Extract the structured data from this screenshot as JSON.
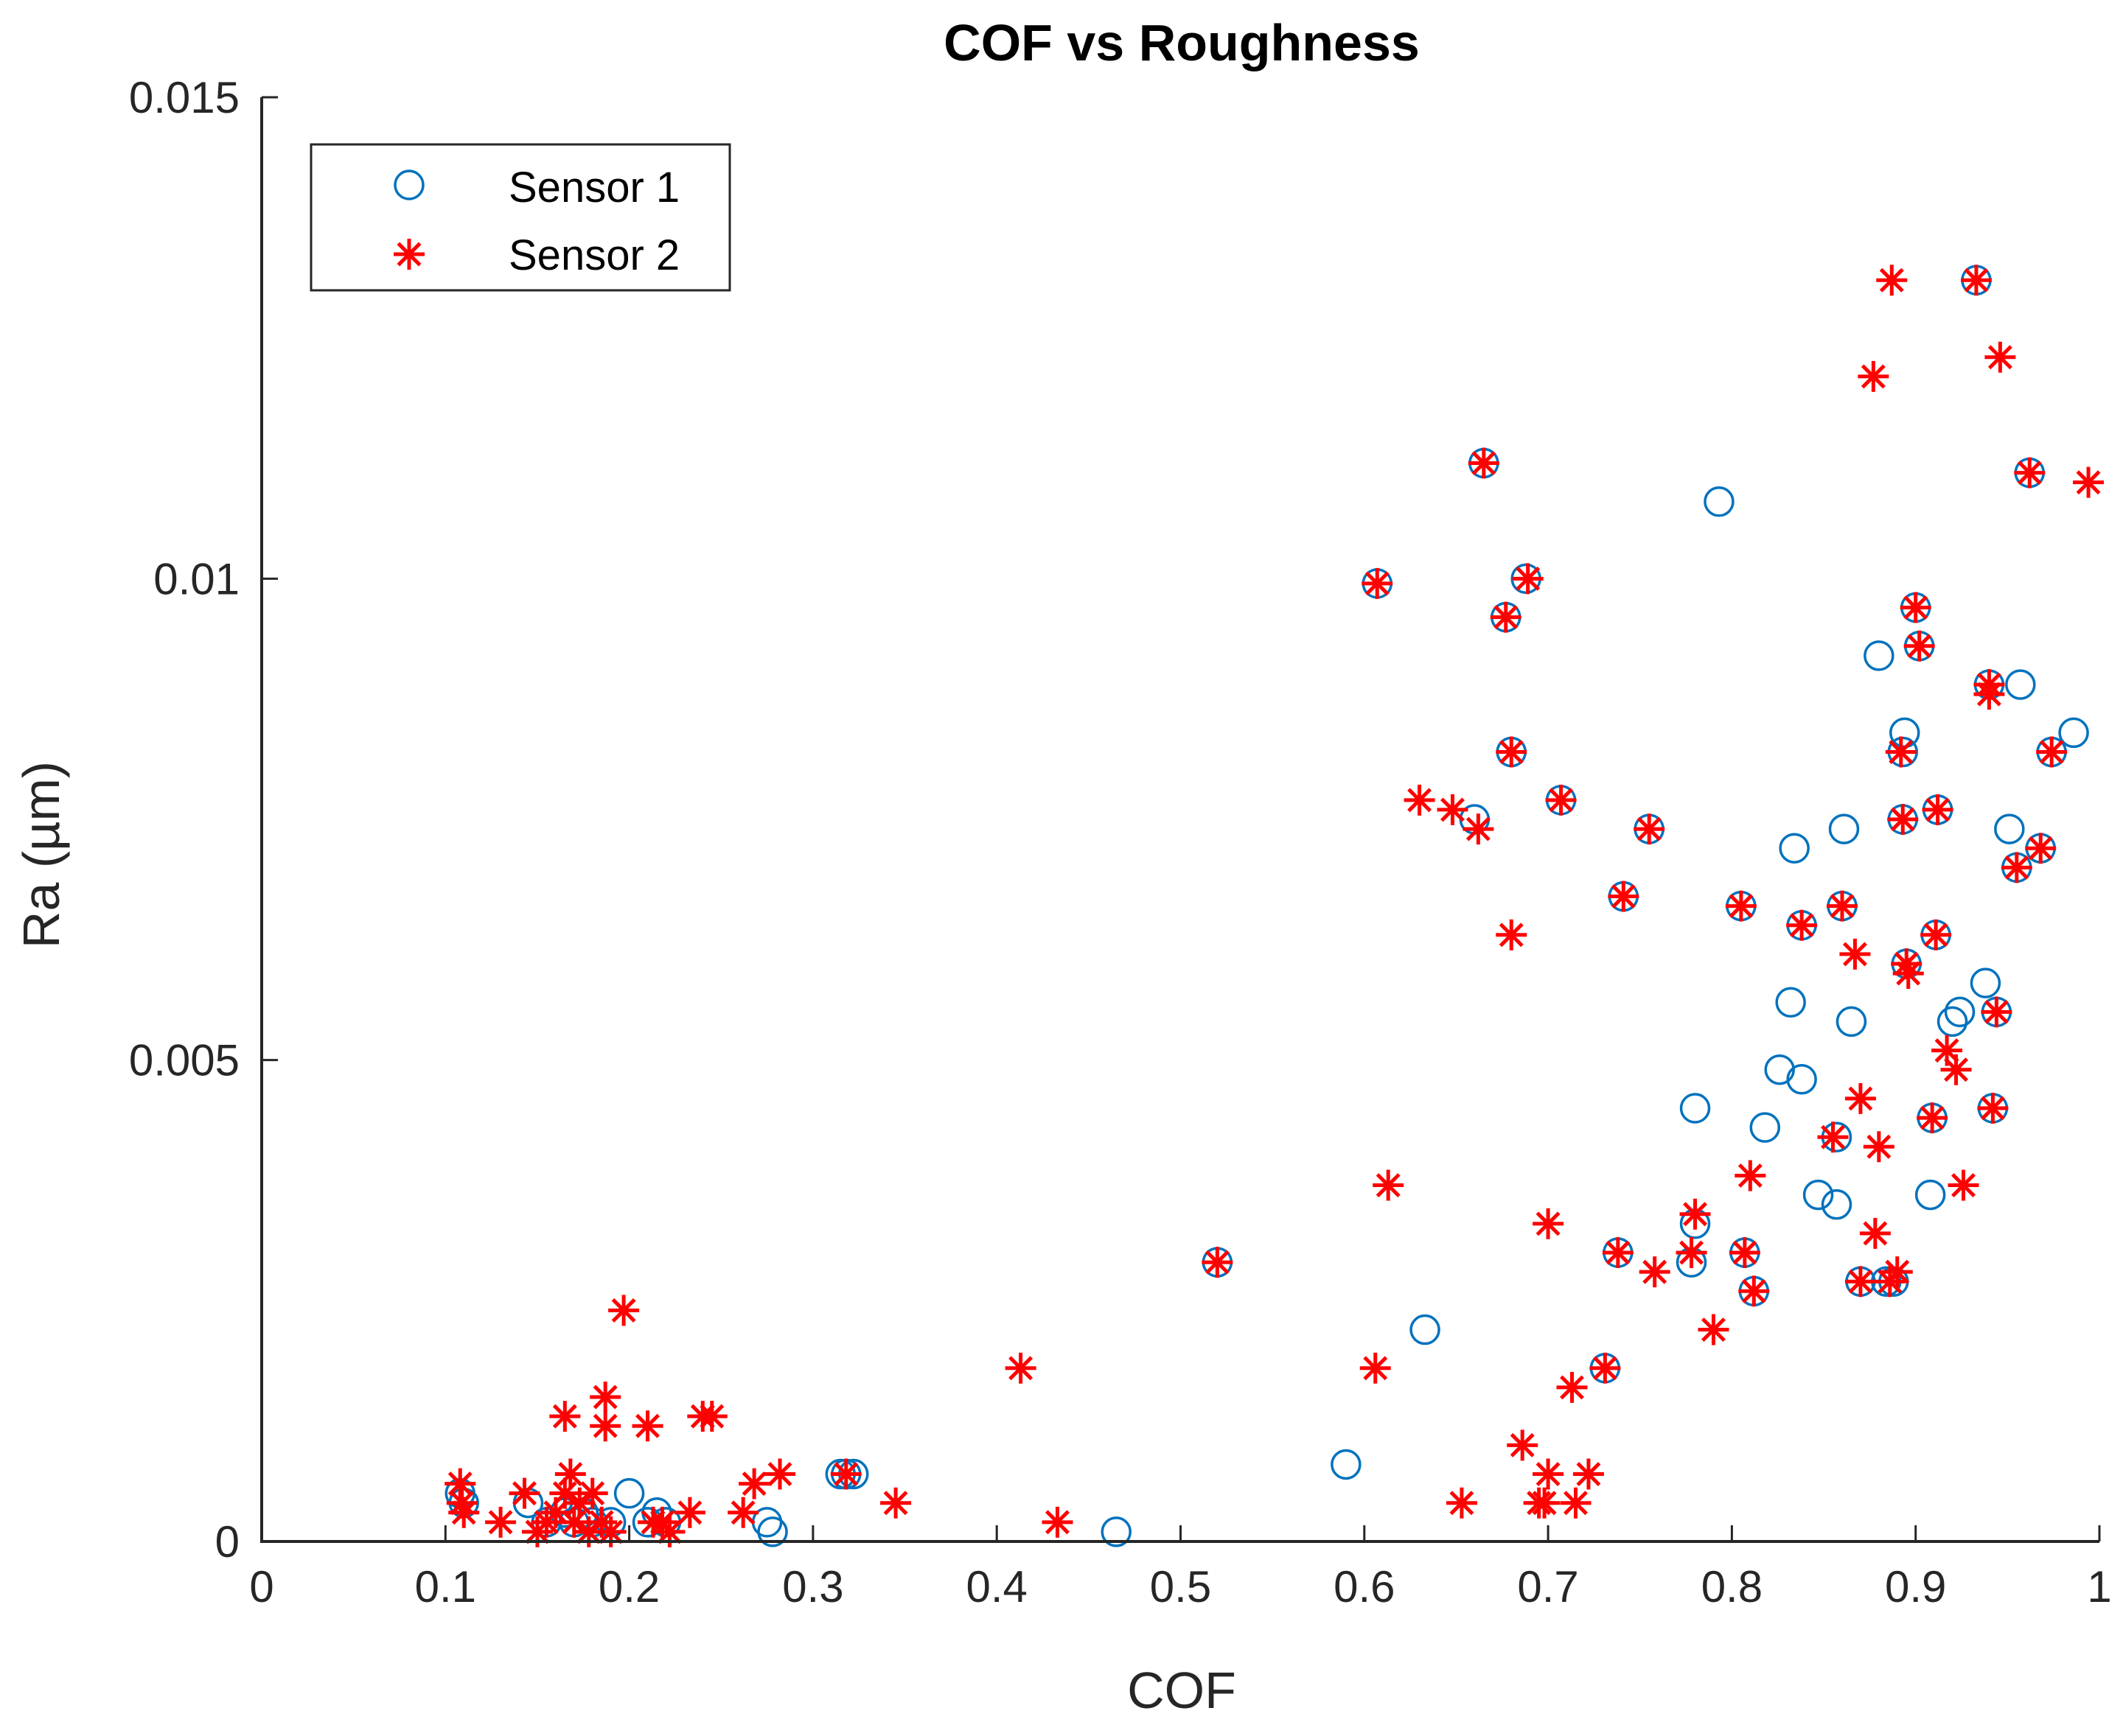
{
  "chart_data": {
    "type": "scatter",
    "title": "COF vs Roughness",
    "xlabel": "COF",
    "ylabel": "Ra (µm)",
    "xlim": [
      0,
      1
    ],
    "ylim": [
      0,
      0.015
    ],
    "xticks": [
      0,
      0.1,
      0.2,
      0.3,
      0.4,
      0.5,
      0.6,
      0.7,
      0.8,
      0.9,
      1
    ],
    "xtick_labels": [
      "0",
      "0.1",
      "0.2",
      "0.3",
      "0.4",
      "0.5",
      "0.6",
      "0.7",
      "0.8",
      "0.9",
      "1"
    ],
    "yticks": [
      0,
      0.005,
      0.01,
      0.015
    ],
    "ytick_labels": [
      "0",
      "0.005",
      "0.01",
      "0.015"
    ],
    "grid": false,
    "legend_position": "top-left",
    "series": [
      {
        "name": "Sensor 1",
        "marker": "circle",
        "color": "#0072BD",
        "points": [
          [
            0.108,
            0.0005
          ],
          [
            0.11,
            0.0004
          ],
          [
            0.145,
            0.0004
          ],
          [
            0.155,
            0.0002
          ],
          [
            0.165,
            0.0003
          ],
          [
            0.17,
            0.0002
          ],
          [
            0.175,
            0.0003
          ],
          [
            0.18,
            0.0002
          ],
          [
            0.19,
            0.0002
          ],
          [
            0.2,
            0.0005
          ],
          [
            0.21,
            0.0002
          ],
          [
            0.215,
            0.0003
          ],
          [
            0.22,
            0.0002
          ],
          [
            0.275,
            0.0002
          ],
          [
            0.278,
            0.0001
          ],
          [
            0.315,
            0.0007
          ],
          [
            0.318,
            0.0007
          ],
          [
            0.322,
            0.0007
          ],
          [
            0.465,
            0.0001
          ],
          [
            0.52,
            0.0029
          ],
          [
            0.59,
            0.0008
          ],
          [
            0.607,
            0.00995
          ],
          [
            0.633,
            0.0022
          ],
          [
            0.66,
            0.0075
          ],
          [
            0.665,
            0.0112
          ],
          [
            0.677,
            0.0096
          ],
          [
            0.68,
            0.0082
          ],
          [
            0.688,
            0.01
          ],
          [
            0.707,
            0.0077
          ],
          [
            0.731,
            0.0018
          ],
          [
            0.738,
            0.003
          ],
          [
            0.741,
            0.0067
          ],
          [
            0.755,
            0.0074
          ],
          [
            0.778,
            0.0029
          ],
          [
            0.78,
            0.0045
          ],
          [
            0.78,
            0.0033
          ],
          [
            0.793,
            0.0108
          ],
          [
            0.805,
            0.0066
          ],
          [
            0.807,
            0.003
          ],
          [
            0.812,
            0.0026
          ],
          [
            0.818,
            0.0043
          ],
          [
            0.826,
            0.0049
          ],
          [
            0.832,
            0.0056
          ],
          [
            0.834,
            0.0072
          ],
          [
            0.838,
            0.0048
          ],
          [
            0.838,
            0.0064
          ],
          [
            0.847,
            0.0036
          ],
          [
            0.857,
            0.0035
          ],
          [
            0.857,
            0.0042
          ],
          [
            0.86,
            0.0066
          ],
          [
            0.861,
            0.0074
          ],
          [
            0.865,
            0.0054
          ],
          [
            0.87,
            0.0027
          ],
          [
            0.88,
            0.0092
          ],
          [
            0.884,
            0.0027
          ],
          [
            0.888,
            0.0027
          ],
          [
            0.893,
            0.0082
          ],
          [
            0.894,
            0.0084
          ],
          [
            0.893,
            0.0075
          ],
          [
            0.895,
            0.006
          ],
          [
            0.9,
            0.0097
          ],
          [
            0.902,
            0.0093
          ],
          [
            0.908,
            0.0036
          ],
          [
            0.909,
            0.0044
          ],
          [
            0.911,
            0.0063
          ],
          [
            0.912,
            0.0076
          ],
          [
            0.92,
            0.0054
          ],
          [
            0.924,
            0.0055
          ],
          [
            0.933,
            0.0131
          ],
          [
            0.938,
            0.0058
          ],
          [
            0.94,
            0.0089
          ],
          [
            0.942,
            0.0045
          ],
          [
            0.944,
            0.0055
          ],
          [
            0.951,
            0.0074
          ],
          [
            0.955,
            0.007
          ],
          [
            0.957,
            0.0089
          ],
          [
            0.962,
            0.0111
          ],
          [
            0.968,
            0.0072
          ],
          [
            0.974,
            0.0082
          ],
          [
            0.986,
            0.0084
          ]
        ]
      },
      {
        "name": "Sensor 2",
        "marker": "asterisk",
        "color": "#FF0000",
        "points": [
          [
            0.108,
            0.0006
          ],
          [
            0.109,
            0.0004
          ],
          [
            0.11,
            0.0003
          ],
          [
            0.13,
            0.0002
          ],
          [
            0.143,
            0.0005
          ],
          [
            0.15,
            0.0001
          ],
          [
            0.155,
            0.0002
          ],
          [
            0.16,
            0.0003
          ],
          [
            0.165,
            0.0005
          ],
          [
            0.165,
            0.0013
          ],
          [
            0.168,
            0.0007
          ],
          [
            0.17,
            0.0002
          ],
          [
            0.173,
            0.0004
          ],
          [
            0.178,
            0.0001
          ],
          [
            0.18,
            0.0005
          ],
          [
            0.185,
            0.0002
          ],
          [
            0.187,
            0.0015
          ],
          [
            0.187,
            0.0012
          ],
          [
            0.19,
            0.0001
          ],
          [
            0.197,
            0.0024
          ],
          [
            0.21,
            0.0012
          ],
          [
            0.213,
            0.0002
          ],
          [
            0.218,
            0.0002
          ],
          [
            0.222,
            0.0001
          ],
          [
            0.233,
            0.0003
          ],
          [
            0.24,
            0.0013
          ],
          [
            0.245,
            0.0013
          ],
          [
            0.262,
            0.0003
          ],
          [
            0.268,
            0.0006
          ],
          [
            0.282,
            0.0007
          ],
          [
            0.318,
            0.0007
          ],
          [
            0.345,
            0.0004
          ],
          [
            0.413,
            0.0018
          ],
          [
            0.433,
            0.0002
          ],
          [
            0.52,
            0.0029
          ],
          [
            0.606,
            0.0018
          ],
          [
            0.607,
            0.00995
          ],
          [
            0.613,
            0.0037
          ],
          [
            0.63,
            0.0077
          ],
          [
            0.648,
            0.0076
          ],
          [
            0.653,
            0.0004
          ],
          [
            0.662,
            0.0074
          ],
          [
            0.665,
            0.0112
          ],
          [
            0.677,
            0.0096
          ],
          [
            0.68,
            0.0082
          ],
          [
            0.68,
            0.0063
          ],
          [
            0.686,
            0.001
          ],
          [
            0.689,
            0.01
          ],
          [
            0.695,
            0.0004
          ],
          [
            0.698,
            0.0004
          ],
          [
            0.7,
            0.0007
          ],
          [
            0.7,
            0.0033
          ],
          [
            0.707,
            0.0077
          ],
          [
            0.713,
            0.0016
          ],
          [
            0.715,
            0.0004
          ],
          [
            0.722,
            0.0007
          ],
          [
            0.731,
            0.0018
          ],
          [
            0.738,
            0.003
          ],
          [
            0.741,
            0.0067
          ],
          [
            0.755,
            0.0074
          ],
          [
            0.758,
            0.0028
          ],
          [
            0.778,
            0.003
          ],
          [
            0.78,
            0.0034
          ],
          [
            0.79,
            0.0022
          ],
          [
            0.805,
            0.0066
          ],
          [
            0.807,
            0.003
          ],
          [
            0.81,
            0.0038
          ],
          [
            0.812,
            0.0026
          ],
          [
            0.838,
            0.0064
          ],
          [
            0.855,
            0.0042
          ],
          [
            0.86,
            0.0066
          ],
          [
            0.867,
            0.0061
          ],
          [
            0.87,
            0.0046
          ],
          [
            0.87,
            0.0027
          ],
          [
            0.877,
            0.0121
          ],
          [
            0.878,
            0.0032
          ],
          [
            0.88,
            0.0041
          ],
          [
            0.886,
            0.0027
          ],
          [
            0.887,
            0.0131
          ],
          [
            0.89,
            0.0028
          ],
          [
            0.892,
            0.0082
          ],
          [
            0.893,
            0.0075
          ],
          [
            0.895,
            0.006
          ],
          [
            0.896,
            0.0059
          ],
          [
            0.9,
            0.0097
          ],
          [
            0.902,
            0.0093
          ],
          [
            0.909,
            0.0044
          ],
          [
            0.911,
            0.0063
          ],
          [
            0.912,
            0.0076
          ],
          [
            0.917,
            0.0051
          ],
          [
            0.922,
            0.0049
          ],
          [
            0.926,
            0.0037
          ],
          [
            0.933,
            0.0131
          ],
          [
            0.94,
            0.0089
          ],
          [
            0.94,
            0.0088
          ],
          [
            0.942,
            0.0045
          ],
          [
            0.944,
            0.0055
          ],
          [
            0.946,
            0.0123
          ],
          [
            0.955,
            0.007
          ],
          [
            0.962,
            0.0111
          ],
          [
            0.968,
            0.0072
          ],
          [
            0.974,
            0.0082
          ],
          [
            0.994,
            0.011
          ]
        ]
      }
    ]
  }
}
